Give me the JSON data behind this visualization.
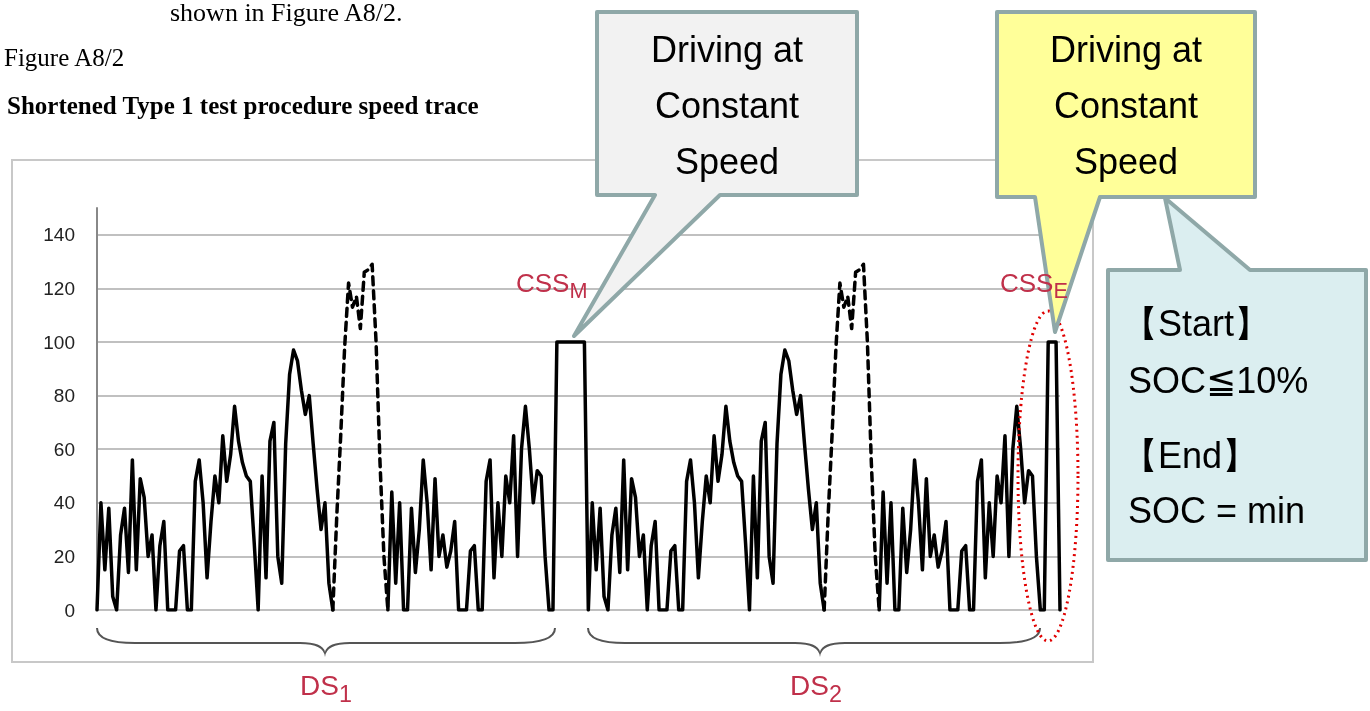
{
  "chart_data": {
    "type": "line",
    "title": "Shortened Type 1 test procedure speed trace",
    "annotations": [
      "shown in Figure A8/2.",
      "Figure A8/2",
      "Driving at Constant Speed",
      "Driving at Constant Speed",
      "【Start】",
      "SOC≦10%",
      "【End】",
      "SOC = min",
      "CSS$_{M}$",
      "CSS$_{E}$",
      "DS$_{1}$",
      "DS$_{2}$"
    ],
    "categories": [
      null,
      null,
      null,
      null,
      null,
      null,
      null,
      null,
      null,
      null,
      null,
      null,
      null,
      null,
      null,
      null,
      null,
      null,
      null,
      null,
      null,
      null,
      null,
      null,
      null,
      null,
      null,
      null,
      null,
      null,
      null,
      null,
      null,
      null,
      null,
      null,
      null,
      null,
      null,
      null,
      null,
      null,
      null,
      null,
      null,
      null,
      null,
      null,
      null,
      null,
      null,
      null,
      null,
      null,
      null,
      null,
      null,
      null,
      null,
      null,
      null,
      null,
      null,
      null,
      null,
      null,
      null,
      null,
      null,
      null,
      null,
      null,
      null,
      null,
      null,
      null,
      null,
      null,
      null,
      null,
      null,
      null,
      null,
      null,
      null,
      null,
      null,
      null,
      null,
      null,
      null,
      null,
      null,
      null,
      null,
      null,
      null,
      null,
      null,
      null,
      null,
      null,
      null,
      null,
      null,
      null,
      null,
      null,
      null,
      null,
      null,
      null,
      null,
      null,
      null,
      null,
      null,
      null,
      null,
      null,
      null,
      null,
      null,
      null,
      null,
      null,
      null,
      null,
      null,
      null,
      null,
      null,
      null,
      null,
      null,
      null,
      null,
      null,
      null,
      null,
      null,
      null,
      null,
      null,
      null,
      null,
      null,
      null,
      null,
      null,
      null,
      null,
      null,
      null,
      null,
      null,
      null,
      null,
      null,
      null,
      null,
      null,
      null,
      null,
      null,
      null,
      null,
      null,
      null,
      null,
      null,
      null,
      null,
      null,
      null,
      null,
      null,
      null,
      null,
      null,
      null,
      null,
      null,
      null,
      null,
      null,
      null,
      null,
      null,
      null,
      null,
      null,
      null,
      null,
      null,
      null,
      null,
      null,
      null,
      null,
      null,
      null,
      null,
      null,
      null,
      null,
      null,
      null,
      null,
      null,
      null,
      null,
      null,
      null,
      null,
      null,
      null,
      null,
      null,
      null,
      null,
      null,
      null,
      null,
      null,
      null,
      null,
      null,
      null,
      null,
      null,
      null,
      null,
      null,
      null,
      null,
      null,
      null,
      null,
      null,
      null,
      null,
      null,
      null,
      null,
      null
    ],
    "series": [
      {
        "color": "#000000",
        "values": [
          0,
          40,
          15,
          38,
          5,
          0,
          28,
          38,
          14,
          56,
          15,
          49,
          42,
          20,
          28,
          0,
          24,
          33,
          0,
          0,
          0,
          22,
          24,
          0,
          0,
          48,
          56,
          40,
          12,
          33,
          50,
          40,
          65,
          48,
          58,
          76,
          63,
          55,
          50,
          48,
          25,
          0,
          50,
          12,
          63,
          70,
          20,
          10,
          62,
          88,
          97,
          93,
          82,
          73,
          80,
          62,
          45,
          30,
          40,
          10,
          0,
          null,
          null,
          null,
          null,
          null,
          null,
          null,
          null,
          null,
          null,
          null,
          null,
          null,
          0,
          44,
          10,
          40,
          0,
          0,
          38,
          14,
          30,
          56,
          40,
          15,
          49,
          20,
          28,
          16,
          22,
          33,
          0,
          0,
          0,
          22,
          24,
          0,
          0,
          48,
          56,
          12,
          40,
          20,
          50,
          40,
          65,
          20,
          60,
          76,
          60,
          40,
          52,
          50,
          20,
          0,
          0,
          100,
          100,
          100,
          100,
          100,
          100,
          100,
          100,
          0,
          40,
          15,
          38,
          5,
          0,
          28,
          38,
          14,
          56,
          15,
          49,
          42,
          20,
          28,
          0,
          24,
          33,
          0,
          0,
          0,
          22,
          24,
          0,
          0,
          48,
          56,
          40,
          12,
          33,
          50,
          40,
          65,
          48,
          58,
          76,
          63,
          55,
          50,
          48,
          25,
          0,
          50,
          12,
          63,
          70,
          20,
          10,
          62,
          88,
          97,
          93,
          82,
          73,
          80,
          62,
          45,
          30,
          40,
          10,
          0,
          null,
          null,
          null,
          null,
          null,
          null,
          null,
          null,
          null,
          null,
          null,
          null,
          null,
          0,
          44,
          10,
          40,
          0,
          0,
          38,
          14,
          30,
          56,
          40,
          15,
          49,
          20,
          28,
          16,
          22,
          33,
          0,
          0,
          0,
          22,
          24,
          0,
          0,
          48,
          56,
          12,
          40,
          20,
          50,
          40,
          65,
          20,
          60,
          76,
          60,
          40,
          52,
          50,
          20,
          0,
          0,
          100,
          100,
          100,
          0
        ]
      },
      {
        "color": "#000000",
        "line_style": "dashed",
        "values": [
          null,
          null,
          null,
          null,
          null,
          null,
          null,
          null,
          null,
          null,
          null,
          null,
          null,
          null,
          null,
          null,
          null,
          null,
          null,
          null,
          null,
          null,
          null,
          null,
          null,
          null,
          null,
          null,
          null,
          null,
          null,
          null,
          null,
          null,
          null,
          null,
          null,
          null,
          null,
          null,
          null,
          null,
          null,
          null,
          null,
          null,
          null,
          null,
          null,
          null,
          null,
          null,
          null,
          null,
          null,
          null,
          null,
          null,
          null,
          null,
          0,
          35,
          65,
          98,
          122,
          113,
          117,
          105,
          126,
          127,
          129,
          100,
          55,
          20,
          0,
          null,
          null,
          null,
          null,
          null,
          null,
          null,
          null,
          null,
          null,
          null,
          null,
          null,
          null,
          null,
          null,
          null,
          null,
          null,
          null,
          null,
          null,
          null,
          null,
          null,
          null,
          null,
          null,
          null,
          null,
          null,
          null,
          null,
          null,
          null,
          null,
          null,
          null,
          null,
          null,
          null,
          null,
          null,
          null,
          null,
          null,
          null,
          null,
          null,
          null,
          null,
          null,
          null,
          null,
          null,
          null,
          null,
          null,
          null,
          null,
          null,
          null,
          null,
          null,
          null,
          null,
          null,
          null,
          null,
          null,
          null,
          null,
          null,
          null,
          null,
          null,
          null,
          null,
          null,
          null,
          null,
          null,
          null,
          null,
          null,
          null,
          null,
          null,
          null,
          null,
          null,
          null,
          null,
          null,
          null,
          null,
          null,
          null,
          null,
          null,
          null,
          null,
          null,
          null,
          null,
          null,
          null,
          null,
          null,
          null,
          0,
          35,
          65,
          98,
          122,
          113,
          117,
          105,
          126,
          127,
          129,
          100,
          55,
          20,
          0,
          null,
          null,
          null,
          null,
          null,
          null,
          null,
          null,
          null,
          null,
          null,
          null,
          null,
          null,
          null,
          null,
          null,
          null,
          null,
          null,
          null,
          null,
          null,
          null,
          null,
          null,
          null,
          null,
          null,
          null,
          null,
          null,
          null,
          null,
          null,
          null,
          null,
          null,
          null,
          null,
          null,
          null,
          null,
          null,
          null,
          null
        ]
      }
    ],
    "ylim": [
      0,
      150
    ],
    "yticks": [
      0,
      20,
      40,
      60,
      80,
      100,
      120,
      140
    ],
    "grid": "y",
    "tick_labels": "y",
    "line_style": "solid"
  }
}
